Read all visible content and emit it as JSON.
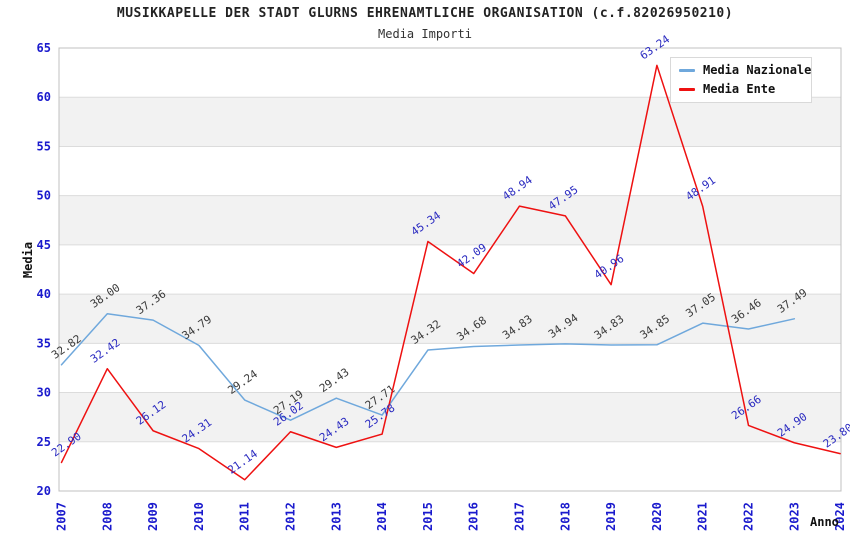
{
  "header": {
    "title": "MUSIKKAPELLE DER STADT GLURNS EHRENAMTLICHE ORGANISATION (c.f.82026950210)",
    "subtitle": "Media Importi"
  },
  "legend": {
    "items": [
      {
        "label": "Media Nazionale",
        "color": "#6fa8dc"
      },
      {
        "label": "Media Ente",
        "color": "#ee1111"
      }
    ]
  },
  "colors": {
    "tick_label": "#1a1acd",
    "grid_line": "#dcdcdc",
    "plot_border": "#c0c0c0",
    "band": "#f2f2f2",
    "nazionale_line": "#6fa8dc",
    "ente_line": "#ee1111",
    "nazionale_data_label": "#3a3a3a",
    "ente_data_label": "#2a2ac0"
  },
  "chart_data": {
    "type": "line",
    "title": "MUSIKKAPELLE DER STADT GLURNS EHRENAMTLICHE ORGANISATION (c.f.82026950210)",
    "subtitle": "Media Importi",
    "xlabel": "Anno",
    "ylabel": "Media",
    "ylim": [
      20,
      65
    ],
    "ytick_step": 5,
    "grid": "horizontal-only",
    "alternating_bands": true,
    "legend_position": "top-right",
    "categories": [
      "2007",
      "2008",
      "2009",
      "2010",
      "2011",
      "2012",
      "2013",
      "2014",
      "2015",
      "2016",
      "2017",
      "2018",
      "2019",
      "2020",
      "2021",
      "2022",
      "2023",
      "2024"
    ],
    "series": [
      {
        "name": "Media Nazionale",
        "values": [
          32.82,
          38.0,
          37.36,
          34.79,
          29.24,
          27.19,
          29.43,
          27.71,
          34.32,
          34.68,
          34.83,
          34.94,
          34.83,
          34.85,
          37.05,
          36.46,
          37.49,
          null
        ]
      },
      {
        "name": "Media Ente",
        "values": [
          22.9,
          32.42,
          26.12,
          24.31,
          21.14,
          26.02,
          24.43,
          25.78,
          45.34,
          42.09,
          48.94,
          47.95,
          40.96,
          63.24,
          48.91,
          26.66,
          24.9,
          23.8
        ]
      }
    ]
  }
}
